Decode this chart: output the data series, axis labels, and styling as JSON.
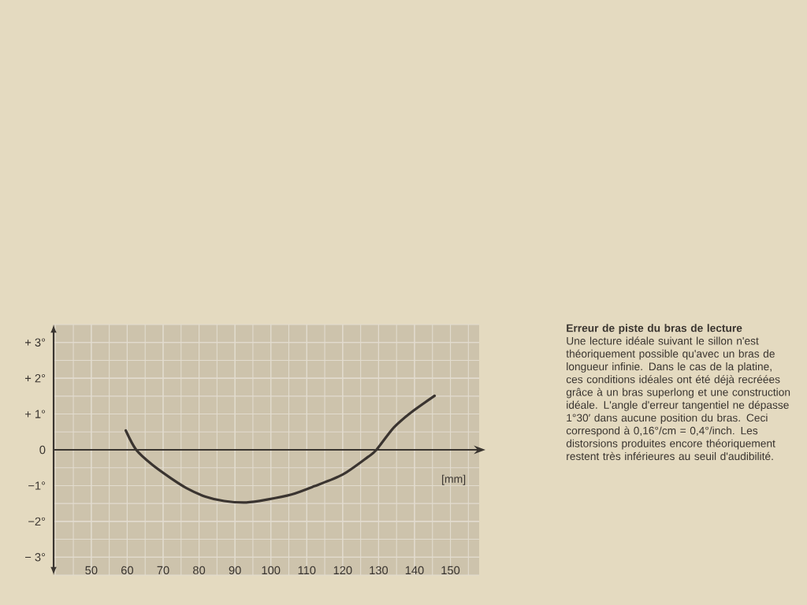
{
  "chart_data": {
    "type": "line",
    "title": "Erreur de piste du bras de lecture",
    "annotations": [
      "Une lecture idéale suivant le sillon n'est théoriquement possible qu'avec un bras de longueur infinie. Dans le cas de la platine, ces conditions idéales ont été déjà recréées grâce à un bras superlong et une construction idéale. L'angle d'erreur tangentiel ne dépasse 1°30′ dans aucune position du bras. Ceci correspond à 0,16°/cm = 0,4°/inch. Les distorsions produites encore théoriquement restent très inférieures au seuil d'audibilité."
    ],
    "xlabel": "[mm]",
    "x": [
      59.6,
      62.5,
      67,
      72.1,
      76.5,
      81.8,
      87,
      93.2,
      99,
      105.7,
      112,
      120,
      127,
      129.4,
      134.2,
      139,
      145.6
    ],
    "values": [
      0.54,
      0,
      -0.42,
      -0.79,
      -1.07,
      -1.31,
      -1.43,
      -1.47,
      -1.39,
      -1.25,
      -1.02,
      -0.69,
      -0.2,
      0,
      0.62,
      1.04,
      1.51
    ],
    "color": "#3a3430",
    "xlim": [
      39.5,
      158
    ],
    "ylim": [
      -3.5,
      3.5
    ],
    "xticks": [
      50,
      60,
      70,
      80,
      90,
      100,
      110,
      120,
      130,
      140,
      150
    ],
    "yticks": [
      {
        "value": 3,
        "label": "+ 3°"
      },
      {
        "value": 2,
        "label": "+ 2°"
      },
      {
        "value": 1,
        "label": "+ 1°"
      },
      0,
      {
        "value": -1,
        "label": "−1°"
      },
      {
        "value": -2,
        "label": "−2°"
      },
      {
        "value": -3,
        "label": "− 3°"
      }
    ],
    "grid": true
  }
}
